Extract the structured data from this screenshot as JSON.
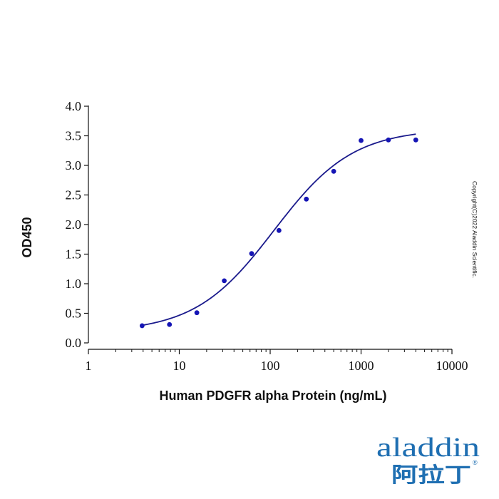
{
  "chart_data": {
    "type": "scatter",
    "title": "",
    "xlabel": "Human PDGFR alpha Protein (ng/mL)",
    "ylabel": "OD450",
    "x_scale": "log",
    "xlim": [
      1,
      10000
    ],
    "ylim": [
      0,
      4.0
    ],
    "x_ticks": [
      1,
      10,
      100,
      1000,
      10000
    ],
    "x_tick_labels": [
      "1",
      "10",
      "100",
      "1000",
      "10000"
    ],
    "y_ticks": [
      0,
      0.5,
      1.0,
      1.5,
      2.0,
      2.5,
      3.0,
      3.5,
      4.0
    ],
    "y_tick_labels": [
      "0.0",
      "0.5",
      "1.0",
      "1.5",
      "2.0",
      "2.5",
      "3.0",
      "3.5",
      "4.0"
    ],
    "grid": false,
    "series": [
      {
        "x": [
          3.9,
          7.8,
          15.6,
          31.25,
          62.5,
          125,
          250,
          500,
          1000,
          2000,
          4000
        ],
        "y": [
          0.29,
          0.31,
          0.51,
          1.05,
          1.51,
          1.9,
          2.43,
          2.9,
          3.42,
          3.43,
          3.43
        ],
        "color": "#1515b5",
        "fit": {
          "type": "4PL",
          "bottom": 0.18,
          "top": 3.62,
          "ec50": 110,
          "hill": 1.0,
          "color": "#1a1a8c"
        }
      }
    ]
  },
  "watermark": {
    "copyright": "Copyright(C)2022 Aladdin Scientific."
  },
  "logo": {
    "text": "aladdin",
    "chinese": "阿拉丁",
    "registered": "®",
    "color": "#1f6fb2",
    "accent": "#d8b21a"
  }
}
